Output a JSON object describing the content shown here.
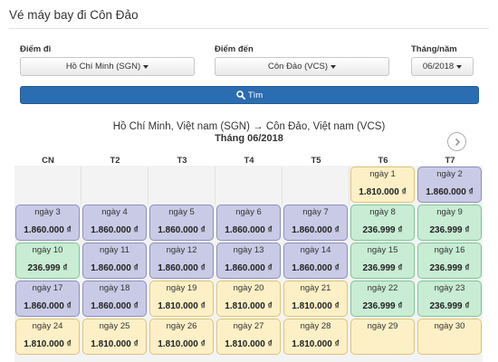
{
  "header": {
    "title": "Vé máy bay đi Côn Đảo"
  },
  "form": {
    "origin_label": "Điểm đi",
    "origin_value": "Hồ Chí Minh (SGN)",
    "destination_label": "Điểm đến",
    "destination_value": "Côn Đảo (VCS)",
    "month_label": "Tháng/năm",
    "month_value": "06/2018",
    "search_label": "Tìm"
  },
  "route": {
    "text": "Hồ Chí Minh, Việt nam (SGN) → Côn Đảo, Việt nam (VCS)",
    "month_title": "Tháng 06/2018"
  },
  "calendar": {
    "weekdays": [
      "CN",
      "T2",
      "T3",
      "T4",
      "T5",
      "T6",
      "T7"
    ],
    "weeks": [
      [
        null,
        null,
        null,
        null,
        null,
        {
          "date": "ngày 1",
          "price": "1.810.000 ₫",
          "color": "yellow"
        },
        {
          "date": "ngày 2",
          "price": "1.860.000 ₫",
          "color": "blue"
        }
      ],
      [
        {
          "date": "ngày 3",
          "price": "1.860.000 ₫",
          "color": "blue"
        },
        {
          "date": "ngày 4",
          "price": "1.860.000 ₫",
          "color": "blue"
        },
        {
          "date": "ngày 5",
          "price": "1.860.000 ₫",
          "color": "blue"
        },
        {
          "date": "ngày 6",
          "price": "1.860.000 ₫",
          "color": "blue"
        },
        {
          "date": "ngày 7",
          "price": "1.860.000 ₫",
          "color": "blue"
        },
        {
          "date": "ngày 8",
          "price": "236.999 ₫",
          "color": "green"
        },
        {
          "date": "ngày 9",
          "price": "236.999 ₫",
          "color": "green"
        }
      ],
      [
        {
          "date": "ngày 10",
          "price": "236.999 ₫",
          "color": "green"
        },
        {
          "date": "ngày 11",
          "price": "1.860.000 ₫",
          "color": "blue"
        },
        {
          "date": "ngày 12",
          "price": "1.860.000 ₫",
          "color": "blue"
        },
        {
          "date": "ngày 13",
          "price": "1.860.000 ₫",
          "color": "blue"
        },
        {
          "date": "ngày 14",
          "price": "1.860.000 ₫",
          "color": "blue"
        },
        {
          "date": "ngày 15",
          "price": "236.999 ₫",
          "color": "green"
        },
        {
          "date": "ngày 16",
          "price": "236.999 ₫",
          "color": "green"
        }
      ],
      [
        {
          "date": "ngày 17",
          "price": "1.860.000 ₫",
          "color": "blue"
        },
        {
          "date": "ngày 18",
          "price": "1.860.000 ₫",
          "color": "blue"
        },
        {
          "date": "ngày 19",
          "price": "1.810.000 ₫",
          "color": "yellow"
        },
        {
          "date": "ngày 20",
          "price": "1.810.000 ₫",
          "color": "yellow"
        },
        {
          "date": "ngày 21",
          "price": "1.810.000 ₫",
          "color": "yellow"
        },
        {
          "date": "ngày 22",
          "price": "236.999 ₫",
          "color": "green"
        },
        {
          "date": "ngày 23",
          "price": "236.999 ₫",
          "color": "green"
        }
      ],
      [
        {
          "date": "ngày 24",
          "price": "1.810.000 ₫",
          "color": "yellow"
        },
        {
          "date": "ngày 25",
          "price": "1.810.000 ₫",
          "color": "yellow"
        },
        {
          "date": "ngày 26",
          "price": "1.810.000 ₫",
          "color": "yellow"
        },
        {
          "date": "ngày 27",
          "price": "1.810.000 ₫",
          "color": "yellow"
        },
        {
          "date": "ngày 28",
          "price": "1.810.000 ₫",
          "color": "yellow"
        },
        {
          "date": "ngày 29",
          "price": "",
          "color": "yellow"
        },
        {
          "date": "ngày 30",
          "price": "",
          "color": "yellow"
        }
      ]
    ]
  },
  "colors": {
    "blue": "#c9cbe6",
    "green": "#c8ecd4",
    "yellow": "#fdf0c6",
    "accent": "#2a6db0"
  },
  "icons": {
    "search": "search-icon",
    "next": "chevron-right-icon"
  }
}
